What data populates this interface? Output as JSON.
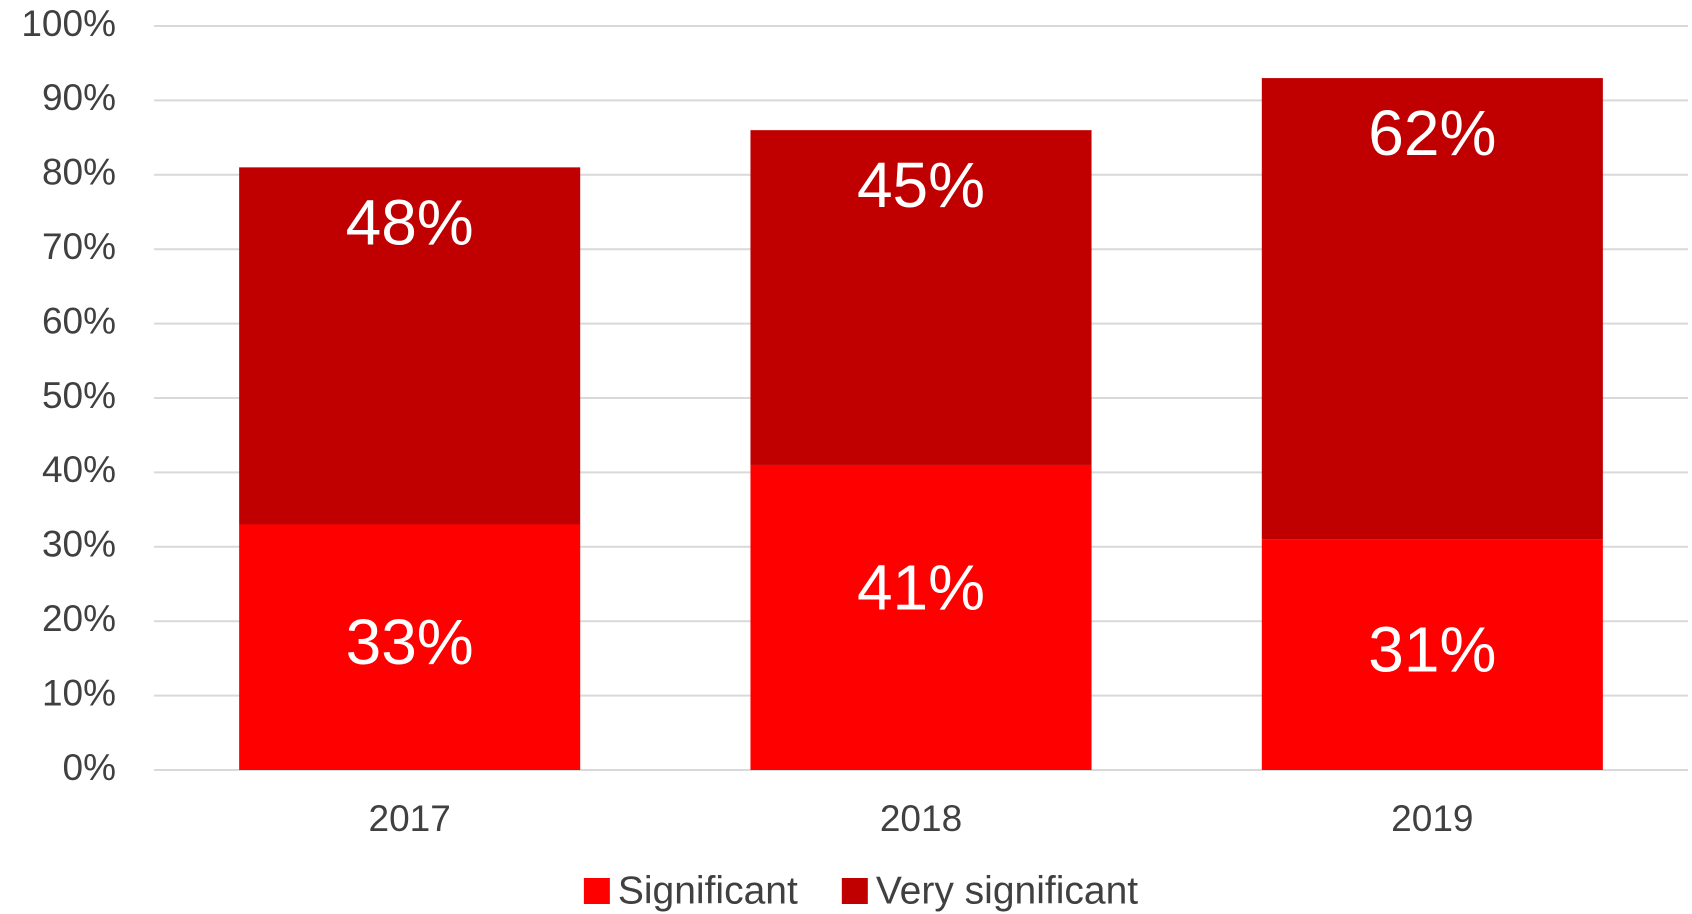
{
  "chart_data": {
    "type": "stacked_bar",
    "categories": [
      "2017",
      "2018",
      "2019"
    ],
    "series": [
      {
        "name": "Significant",
        "color": "#ff0000",
        "values": [
          33,
          41,
          31
        ],
        "value_labels": [
          "33%",
          "41%",
          "31%"
        ]
      },
      {
        "name": "Very significant",
        "color": "#c00000",
        "values": [
          48,
          45,
          62
        ],
        "value_labels": [
          "48%",
          "45%",
          "62%"
        ]
      }
    ],
    "ylim": [
      0,
      100
    ],
    "yticks": [
      {
        "value": 0,
        "label": "0%"
      },
      {
        "value": 10,
        "label": "10%"
      },
      {
        "value": 20,
        "label": "20%"
      },
      {
        "value": 30,
        "label": "30%"
      },
      {
        "value": 40,
        "label": "40%"
      },
      {
        "value": 50,
        "label": "50%"
      },
      {
        "value": 60,
        "label": "60%"
      },
      {
        "value": 70,
        "label": "70%"
      },
      {
        "value": 80,
        "label": "80%"
      },
      {
        "value": 90,
        "label": "90%"
      },
      {
        "value": 100,
        "label": "100%"
      }
    ],
    "grid": true,
    "legend": "bottom"
  }
}
